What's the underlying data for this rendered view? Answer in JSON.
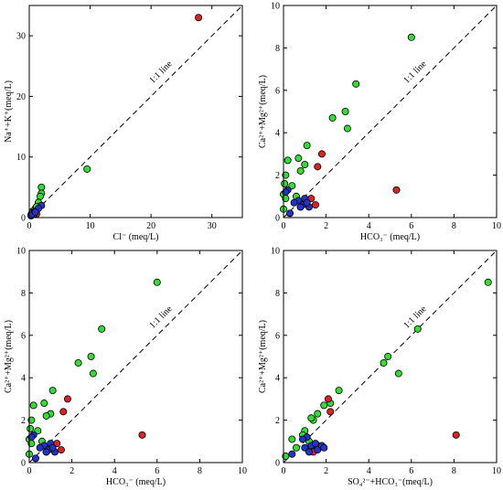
{
  "colors": {
    "green": "#33dd33",
    "red": "#dd2222",
    "blue": "#2233cc"
  },
  "chart_data": [
    {
      "type": "scatter",
      "xlabel": "Cl⁻ (meq/L)",
      "ylabel": "Na⁺+K⁺(meq/L)",
      "xlim": [
        0,
        35
      ],
      "ylim": [
        0,
        35
      ],
      "xticks": [
        0,
        10,
        20,
        30
      ],
      "yticks": [
        0,
        10,
        20,
        30
      ],
      "refline_label": "1:1 line",
      "points": {
        "green": [
          [
            9.5,
            8.0
          ],
          [
            2.0,
            5.0
          ],
          [
            2.0,
            4.0
          ],
          [
            1.8,
            3.5
          ],
          [
            1.5,
            2.5
          ],
          [
            1.0,
            1.5
          ],
          [
            0.5,
            1.0
          ],
          [
            0.3,
            0.5
          ],
          [
            0.8,
            1.2
          ],
          [
            1.2,
            1.8
          ]
        ],
        "red": [
          [
            27.8,
            33.0
          ],
          [
            0.6,
            0.8
          ],
          [
            0.9,
            1.0
          ],
          [
            1.2,
            0.6
          ]
        ],
        "blue": [
          [
            2.0,
            2.0
          ],
          [
            1.5,
            1.5
          ],
          [
            0.8,
            0.6
          ],
          [
            0.3,
            0.3
          ],
          [
            1.0,
            0.9
          ]
        ]
      }
    },
    {
      "type": "scatter",
      "xlabel": "HCO₃⁻ (meq/L)",
      "ylabel": "Ca²⁺+Mg²⁺(meq/L)",
      "xlim": [
        0,
        10
      ],
      "ylim": [
        0,
        10
      ],
      "xticks": [
        0,
        2,
        4,
        6,
        8,
        10
      ],
      "yticks": [
        0,
        2,
        4,
        6,
        8,
        10
      ],
      "refline_label": "1:1 line",
      "points": {
        "green": [
          [
            6.0,
            8.5
          ],
          [
            3.4,
            6.3
          ],
          [
            2.9,
            5.0
          ],
          [
            2.3,
            4.7
          ],
          [
            3.0,
            4.2
          ],
          [
            1.1,
            3.4
          ],
          [
            0.7,
            2.8
          ],
          [
            0.2,
            2.7
          ],
          [
            1.0,
            2.5
          ],
          [
            0.1,
            2.0
          ],
          [
            0.8,
            2.2
          ],
          [
            0.4,
            1.5
          ],
          [
            0.05,
            1.6
          ],
          [
            0.0,
            1.1
          ],
          [
            0.1,
            0.9
          ],
          [
            0.6,
            1.0
          ],
          [
            0.0,
            0.4
          ]
        ],
        "red": [
          [
            5.3,
            1.3
          ],
          [
            1.8,
            3.0
          ],
          [
            1.6,
            2.4
          ],
          [
            1.5,
            0.6
          ],
          [
            1.3,
            0.9
          ],
          [
            1.0,
            0.7
          ],
          [
            0.8,
            0.5
          ]
        ],
        "blue": [
          [
            0.2,
            1.3
          ],
          [
            0.1,
            1.2
          ],
          [
            0.7,
            0.8
          ],
          [
            0.9,
            0.6
          ],
          [
            1.2,
            0.5
          ],
          [
            0.5,
            0.7
          ],
          [
            0.3,
            0.2
          ],
          [
            0.8,
            0.5
          ],
          [
            1.0,
            0.9
          ],
          [
            1.1,
            0.7
          ]
        ]
      }
    },
    {
      "type": "scatter",
      "xlabel": "HCO₃⁻ (meq/L)",
      "ylabel": "Ca²⁺+Mg²⁺(meq/L)",
      "xlim": [
        0,
        10
      ],
      "ylim": [
        0,
        10
      ],
      "xticks": [
        0,
        2,
        4,
        6,
        8,
        10
      ],
      "yticks": [
        0,
        2,
        4,
        6,
        8,
        10
      ],
      "refline_label": "1:1 line",
      "points": {
        "green": [
          [
            6.0,
            8.5
          ],
          [
            3.4,
            6.3
          ],
          [
            2.9,
            5.0
          ],
          [
            2.3,
            4.7
          ],
          [
            3.0,
            4.2
          ],
          [
            1.1,
            3.4
          ],
          [
            0.7,
            2.8
          ],
          [
            0.2,
            2.7
          ],
          [
            1.0,
            2.3
          ],
          [
            0.1,
            2.0
          ],
          [
            0.8,
            2.2
          ],
          [
            0.4,
            1.5
          ],
          [
            0.05,
            1.6
          ],
          [
            0.0,
            1.1
          ],
          [
            0.1,
            0.9
          ],
          [
            0.6,
            1.0
          ],
          [
            0.0,
            0.4
          ]
        ],
        "red": [
          [
            5.3,
            1.3
          ],
          [
            1.8,
            3.0
          ],
          [
            1.6,
            2.4
          ],
          [
            1.5,
            0.6
          ],
          [
            1.3,
            0.9
          ],
          [
            1.0,
            0.7
          ],
          [
            0.8,
            0.5
          ]
        ],
        "blue": [
          [
            0.2,
            1.3
          ],
          [
            0.1,
            1.2
          ],
          [
            0.7,
            0.8
          ],
          [
            0.9,
            0.6
          ],
          [
            1.2,
            0.5
          ],
          [
            0.5,
            0.7
          ],
          [
            0.3,
            0.2
          ],
          [
            0.8,
            0.5
          ],
          [
            1.0,
            0.9
          ],
          [
            1.1,
            0.7
          ]
        ]
      }
    },
    {
      "type": "scatter",
      "xlabel": "SO₄²⁻+HCO₃⁻(meq/L)",
      "ylabel": "Ca²⁺+Mg²⁺(meq/L)",
      "xlim": [
        0,
        10
      ],
      "ylim": [
        0,
        10
      ],
      "xticks": [
        0,
        2,
        4,
        6,
        8,
        10
      ],
      "yticks": [
        0,
        2,
        4,
        6,
        8,
        10
      ],
      "refline_label": "1:1 line",
      "points": {
        "green": [
          [
            9.6,
            8.5
          ],
          [
            6.3,
            6.3
          ],
          [
            4.9,
            5.0
          ],
          [
            4.7,
            4.7
          ],
          [
            5.4,
            4.2
          ],
          [
            2.6,
            3.4
          ],
          [
            2.2,
            2.8
          ],
          [
            1.9,
            2.7
          ],
          [
            1.6,
            2.3
          ],
          [
            1.4,
            2.0
          ],
          [
            1.3,
            2.1
          ],
          [
            1.0,
            1.5
          ],
          [
            0.9,
            1.3
          ],
          [
            0.4,
            1.1
          ],
          [
            1.2,
            1.0
          ],
          [
            0.6,
            0.7
          ],
          [
            0.1,
            0.3
          ]
        ],
        "red": [
          [
            8.1,
            1.3
          ],
          [
            2.1,
            3.0
          ],
          [
            2.2,
            2.4
          ],
          [
            1.5,
            0.6
          ],
          [
            1.6,
            0.8
          ],
          [
            1.3,
            0.6
          ],
          [
            1.4,
            0.5
          ]
        ],
        "blue": [
          [
            1.1,
            1.2
          ],
          [
            0.9,
            1.1
          ],
          [
            1.3,
            0.8
          ],
          [
            1.6,
            0.6
          ],
          [
            1.8,
            0.8
          ],
          [
            1.0,
            0.7
          ],
          [
            0.4,
            0.4
          ],
          [
            1.2,
            0.5
          ],
          [
            1.5,
            0.9
          ],
          [
            1.9,
            0.7
          ]
        ]
      }
    }
  ]
}
